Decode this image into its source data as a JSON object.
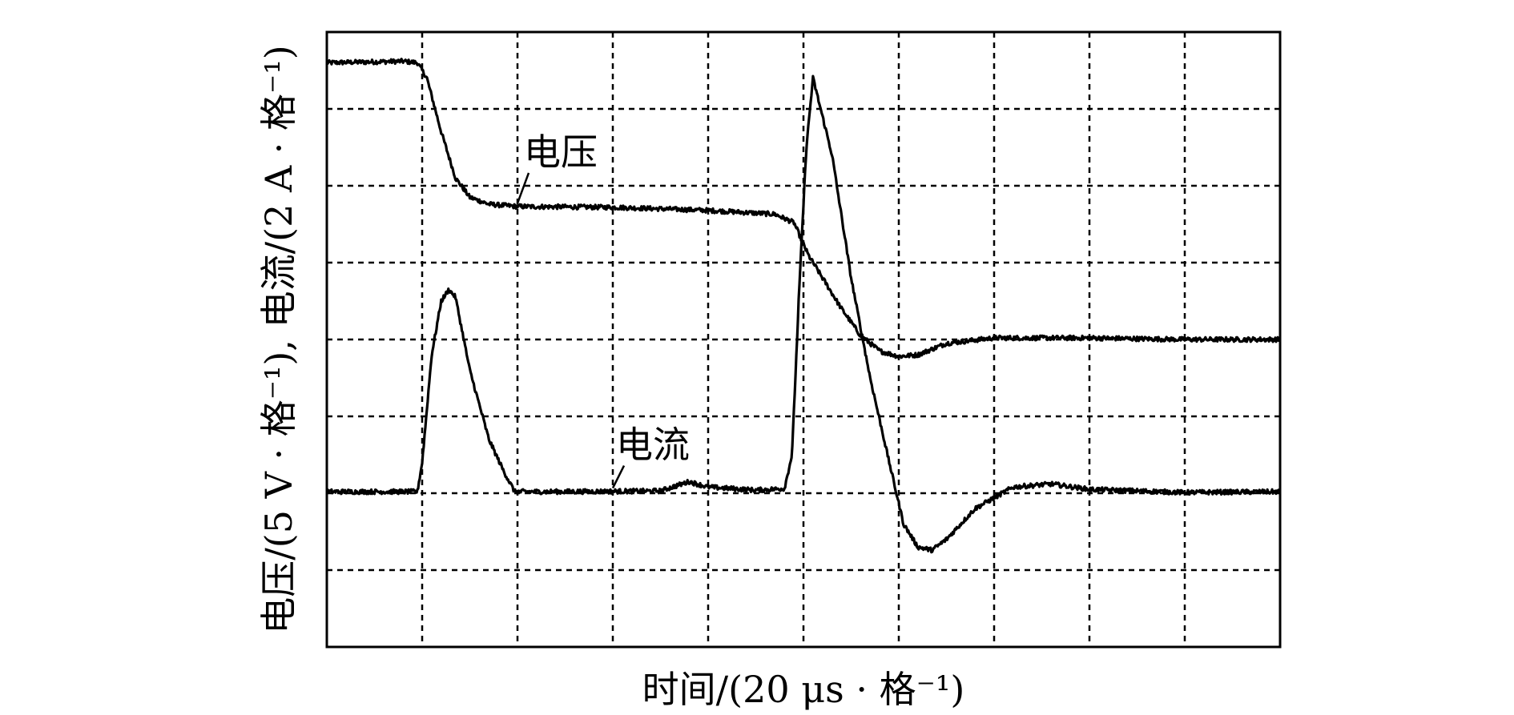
{
  "chart_data": {
    "type": "line",
    "title": "",
    "xlabel": "时间/(20 μs · 格⁻¹)",
    "ylabel": "电压/(5 V · 格⁻¹), 电流/(2 A · 格⁻¹)",
    "grid": true,
    "grid_divisions": {
      "x": 10,
      "y": 8
    },
    "x_unit": "div",
    "y_unit": "div",
    "xlim": [
      0,
      10
    ],
    "ylim": [
      0,
      8
    ],
    "series": [
      {
        "name": "电压",
        "color": "#000000",
        "points": [
          [
            0,
            7.6
          ],
          [
            0.8,
            7.62
          ],
          [
            0.95,
            7.6
          ],
          [
            1.05,
            7.4
          ],
          [
            1.2,
            6.7
          ],
          [
            1.35,
            6.1
          ],
          [
            1.5,
            5.85
          ],
          [
            1.7,
            5.76
          ],
          [
            2,
            5.73
          ],
          [
            3,
            5.72
          ],
          [
            4,
            5.68
          ],
          [
            4.7,
            5.63
          ],
          [
            4.9,
            5.52
          ],
          [
            5.05,
            5.1
          ],
          [
            5.2,
            4.8
          ],
          [
            5.4,
            4.4
          ],
          [
            5.6,
            4.05
          ],
          [
            5.8,
            3.85
          ],
          [
            6,
            3.78
          ],
          [
            6.2,
            3.8
          ],
          [
            6.5,
            3.95
          ],
          [
            7,
            4.02
          ],
          [
            8,
            4.02
          ],
          [
            9,
            4.0
          ],
          [
            10,
            4.0
          ]
        ]
      },
      {
        "name": "电流",
        "color": "#000000",
        "points": [
          [
            0,
            2.02
          ],
          [
            0.95,
            2.02
          ],
          [
            1.0,
            2.4
          ],
          [
            1.1,
            3.8
          ],
          [
            1.2,
            4.5
          ],
          [
            1.28,
            4.65
          ],
          [
            1.35,
            4.55
          ],
          [
            1.5,
            3.6
          ],
          [
            1.7,
            2.7
          ],
          [
            1.85,
            2.3
          ],
          [
            1.97,
            2.02
          ],
          [
            2.5,
            2.02
          ],
          [
            3.5,
            2.03
          ],
          [
            3.8,
            2.15
          ],
          [
            4.0,
            2.08
          ],
          [
            4.5,
            2.04
          ],
          [
            4.8,
            2.06
          ],
          [
            4.88,
            2.5
          ],
          [
            4.95,
            4.5
          ],
          [
            5.03,
            6.5
          ],
          [
            5.1,
            7.4
          ],
          [
            5.17,
            7.05
          ],
          [
            5.3,
            6.4
          ],
          [
            5.5,
            4.8
          ],
          [
            5.7,
            3.5
          ],
          [
            5.9,
            2.4
          ],
          [
            6.05,
            1.6
          ],
          [
            6.2,
            1.3
          ],
          [
            6.35,
            1.26
          ],
          [
            6.5,
            1.4
          ],
          [
            6.8,
            1.8
          ],
          [
            7.2,
            2.08
          ],
          [
            7.6,
            2.12
          ],
          [
            8,
            2.05
          ],
          [
            9,
            2.01
          ],
          [
            10,
            2.02
          ]
        ]
      }
    ],
    "annotations": [
      {
        "text": "电压",
        "series": "电压"
      },
      {
        "text": "电流",
        "series": "电流"
      }
    ]
  }
}
